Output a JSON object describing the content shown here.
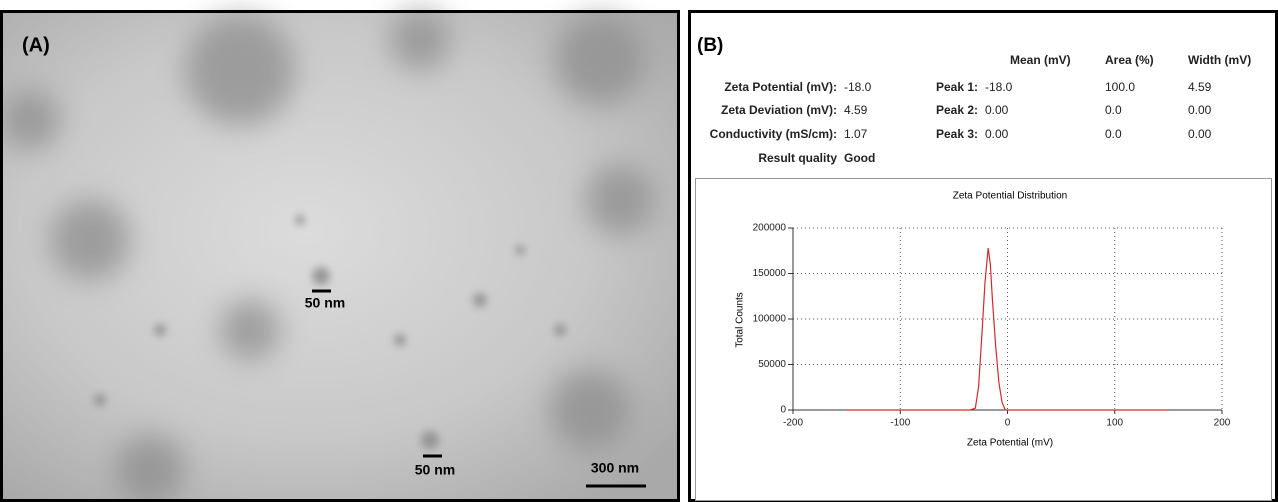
{
  "panel_a": {
    "label": "(A)",
    "scale_labels": [
      "50 nm",
      "50 nm",
      "300 nm"
    ]
  },
  "panel_b": {
    "label": "(B)",
    "table": {
      "header": [
        "Mean (mV)",
        "Area (%)",
        "Width (mV)"
      ],
      "rows": [
        [
          "Zeta Potential (mV):",
          "-18.0",
          "Peak 1:",
          "-18.0",
          "100.0",
          "4.59"
        ],
        [
          "Zeta Deviation (mV):",
          "4.59",
          "Peak 2:",
          "0.00",
          "0.0",
          "0.00"
        ],
        [
          "Conductivity (mS/cm):",
          "1.07",
          "Peak 3:",
          "0.00",
          "0.0",
          "0.00"
        ],
        [
          "Result quality",
          "Good"
        ]
      ]
    }
  },
  "chart_data": {
    "type": "line",
    "title": "Zeta Potential Distribution",
    "xlabel": "Zeta Potential (mV)",
    "ylabel": "Total Counts",
    "x": [
      -150,
      -50,
      -35,
      -30,
      -27,
      -24,
      -21,
      -18,
      -16,
      -14,
      -11,
      -8,
      -5,
      -2,
      50,
      150
    ],
    "series": [
      {
        "name": "Total Counts",
        "color": "#d42a2a",
        "values": [
          0,
          0,
          0,
          2000,
          25000,
          80000,
          140000,
          178000,
          160000,
          120000,
          70000,
          30000,
          8000,
          0,
          0,
          0
        ]
      }
    ],
    "xlim": [
      -200,
      200
    ],
    "ylim": [
      0,
      200000
    ],
    "xticks": [
      -200,
      -100,
      0,
      100,
      200
    ],
    "yticks": [
      0,
      50000,
      100000,
      150000,
      200000
    ],
    "grid": true
  }
}
